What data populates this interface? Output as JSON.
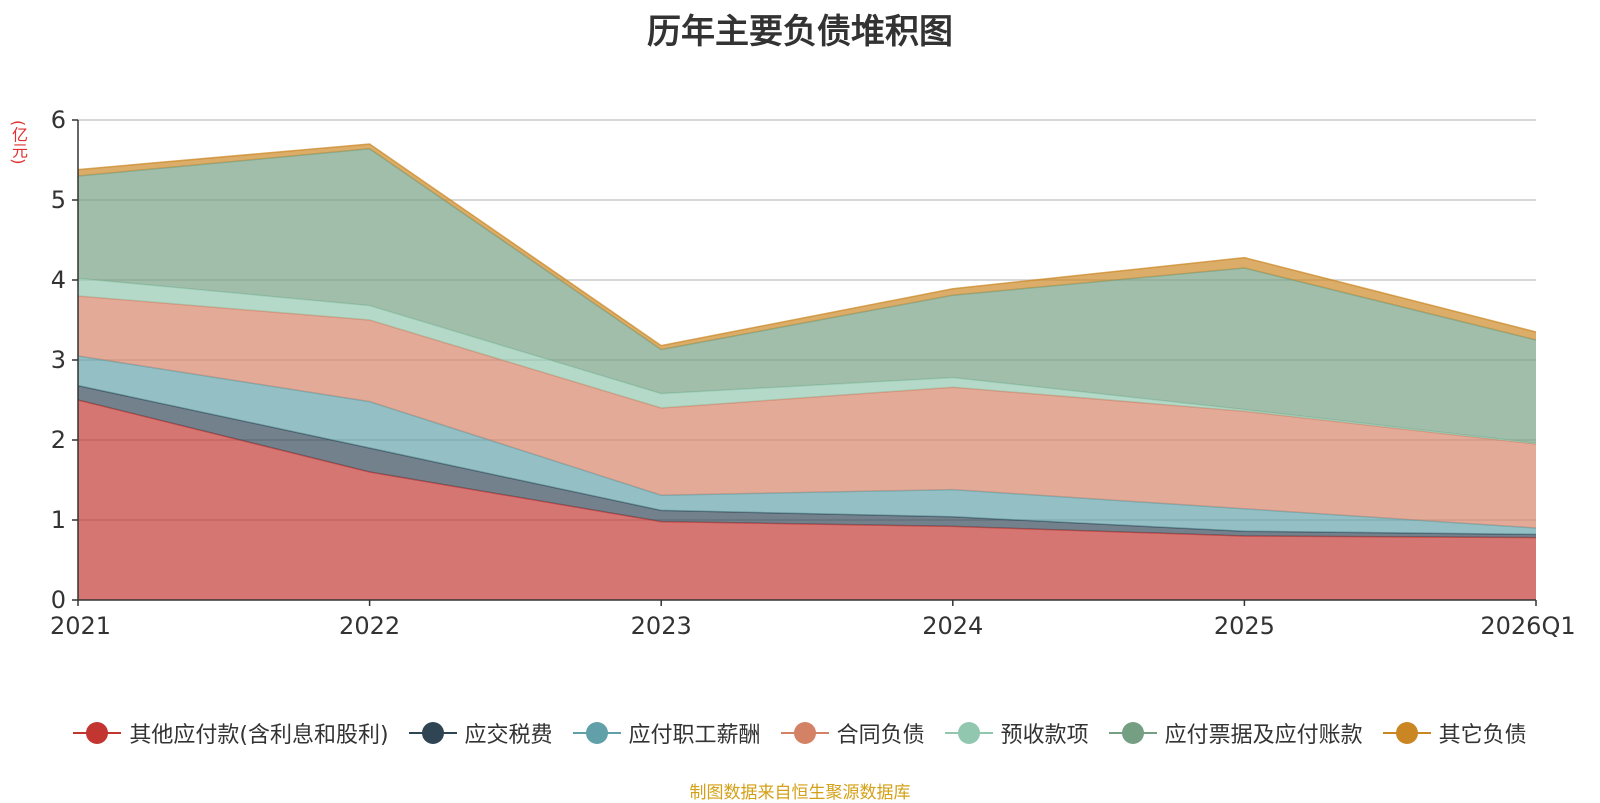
{
  "chart_data": {
    "type": "area",
    "stacked": true,
    "title": "历年主要负债堆积图",
    "ylabel": "(亿元)",
    "xlabel": "",
    "categories": [
      "2021",
      "2022",
      "2023",
      "2024",
      "2025",
      "2026Q1"
    ],
    "ylim": [
      0,
      6
    ],
    "yticks": [
      0,
      1,
      2,
      3,
      4,
      5,
      6
    ],
    "grid": true,
    "legend_position": "bottom",
    "series": [
      {
        "name": "其他应付款(含利息和股利)",
        "color": "#c23531",
        "values": [
          2.5,
          1.6,
          0.98,
          0.92,
          0.8,
          0.78
        ]
      },
      {
        "name": "应交税费",
        "color": "#2f4554",
        "values": [
          0.18,
          0.3,
          0.14,
          0.12,
          0.06,
          0.04
        ]
      },
      {
        "name": "应付职工薪酬",
        "color": "#61a0a8",
        "values": [
          0.37,
          0.58,
          0.19,
          0.34,
          0.28,
          0.08
        ]
      },
      {
        "name": "合同负债",
        "color": "#d48265",
        "values": [
          0.75,
          1.02,
          1.09,
          1.28,
          1.22,
          1.05
        ]
      },
      {
        "name": "预收款项",
        "color": "#91c7ae",
        "values": [
          0.22,
          0.18,
          0.18,
          0.12,
          0.02,
          0.01
        ]
      },
      {
        "name": "应付票据及应付账款",
        "color": "#749f83",
        "values": [
          1.28,
          1.96,
          0.55,
          1.03,
          1.77,
          1.29
        ]
      },
      {
        "name": "其它负债",
        "color": "#ca8622",
        "values": [
          0.08,
          0.06,
          0.05,
          0.08,
          0.13,
          0.1
        ]
      }
    ],
    "source_note": "制图数据来自恒生聚源数据库"
  }
}
